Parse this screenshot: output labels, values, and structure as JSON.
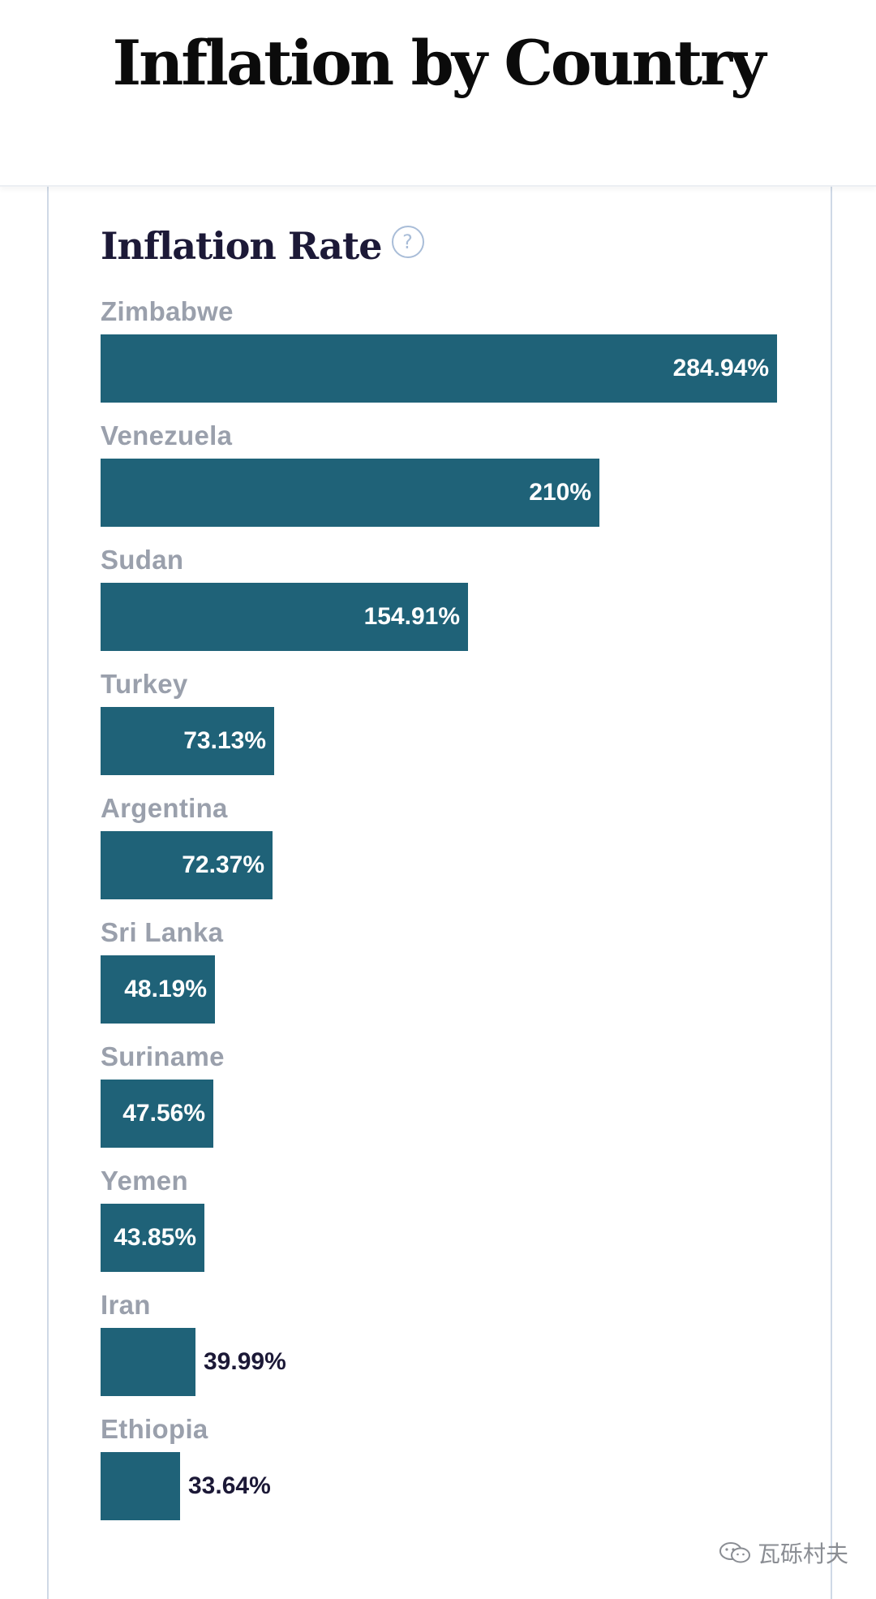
{
  "header": {
    "title": "Inflation by Country"
  },
  "card": {
    "heading": "Inflation Rate",
    "help_glyph": "?"
  },
  "chart_data": {
    "type": "bar",
    "orientation": "horizontal",
    "title": "Inflation Rate",
    "categories": [
      "Zimbabwe",
      "Venezuela",
      "Sudan",
      "Turkey",
      "Argentina",
      "Sri Lanka",
      "Suriname",
      "Yemen",
      "Iran",
      "Ethiopia"
    ],
    "values": [
      284.94,
      210,
      154.91,
      73.13,
      72.37,
      48.19,
      47.56,
      43.85,
      39.99,
      33.64
    ],
    "labels": [
      "284.94%",
      "210%",
      "154.91%",
      "73.13%",
      "72.37%",
      "48.19%",
      "47.56%",
      "43.85%",
      "39.99%",
      "33.64%"
    ],
    "xlim": [
      0,
      284.94
    ],
    "grid": false,
    "bar_color": "#1f6278"
  },
  "watermark": {
    "text": "瓦砾村夫",
    "icon": "wechat-icon"
  }
}
